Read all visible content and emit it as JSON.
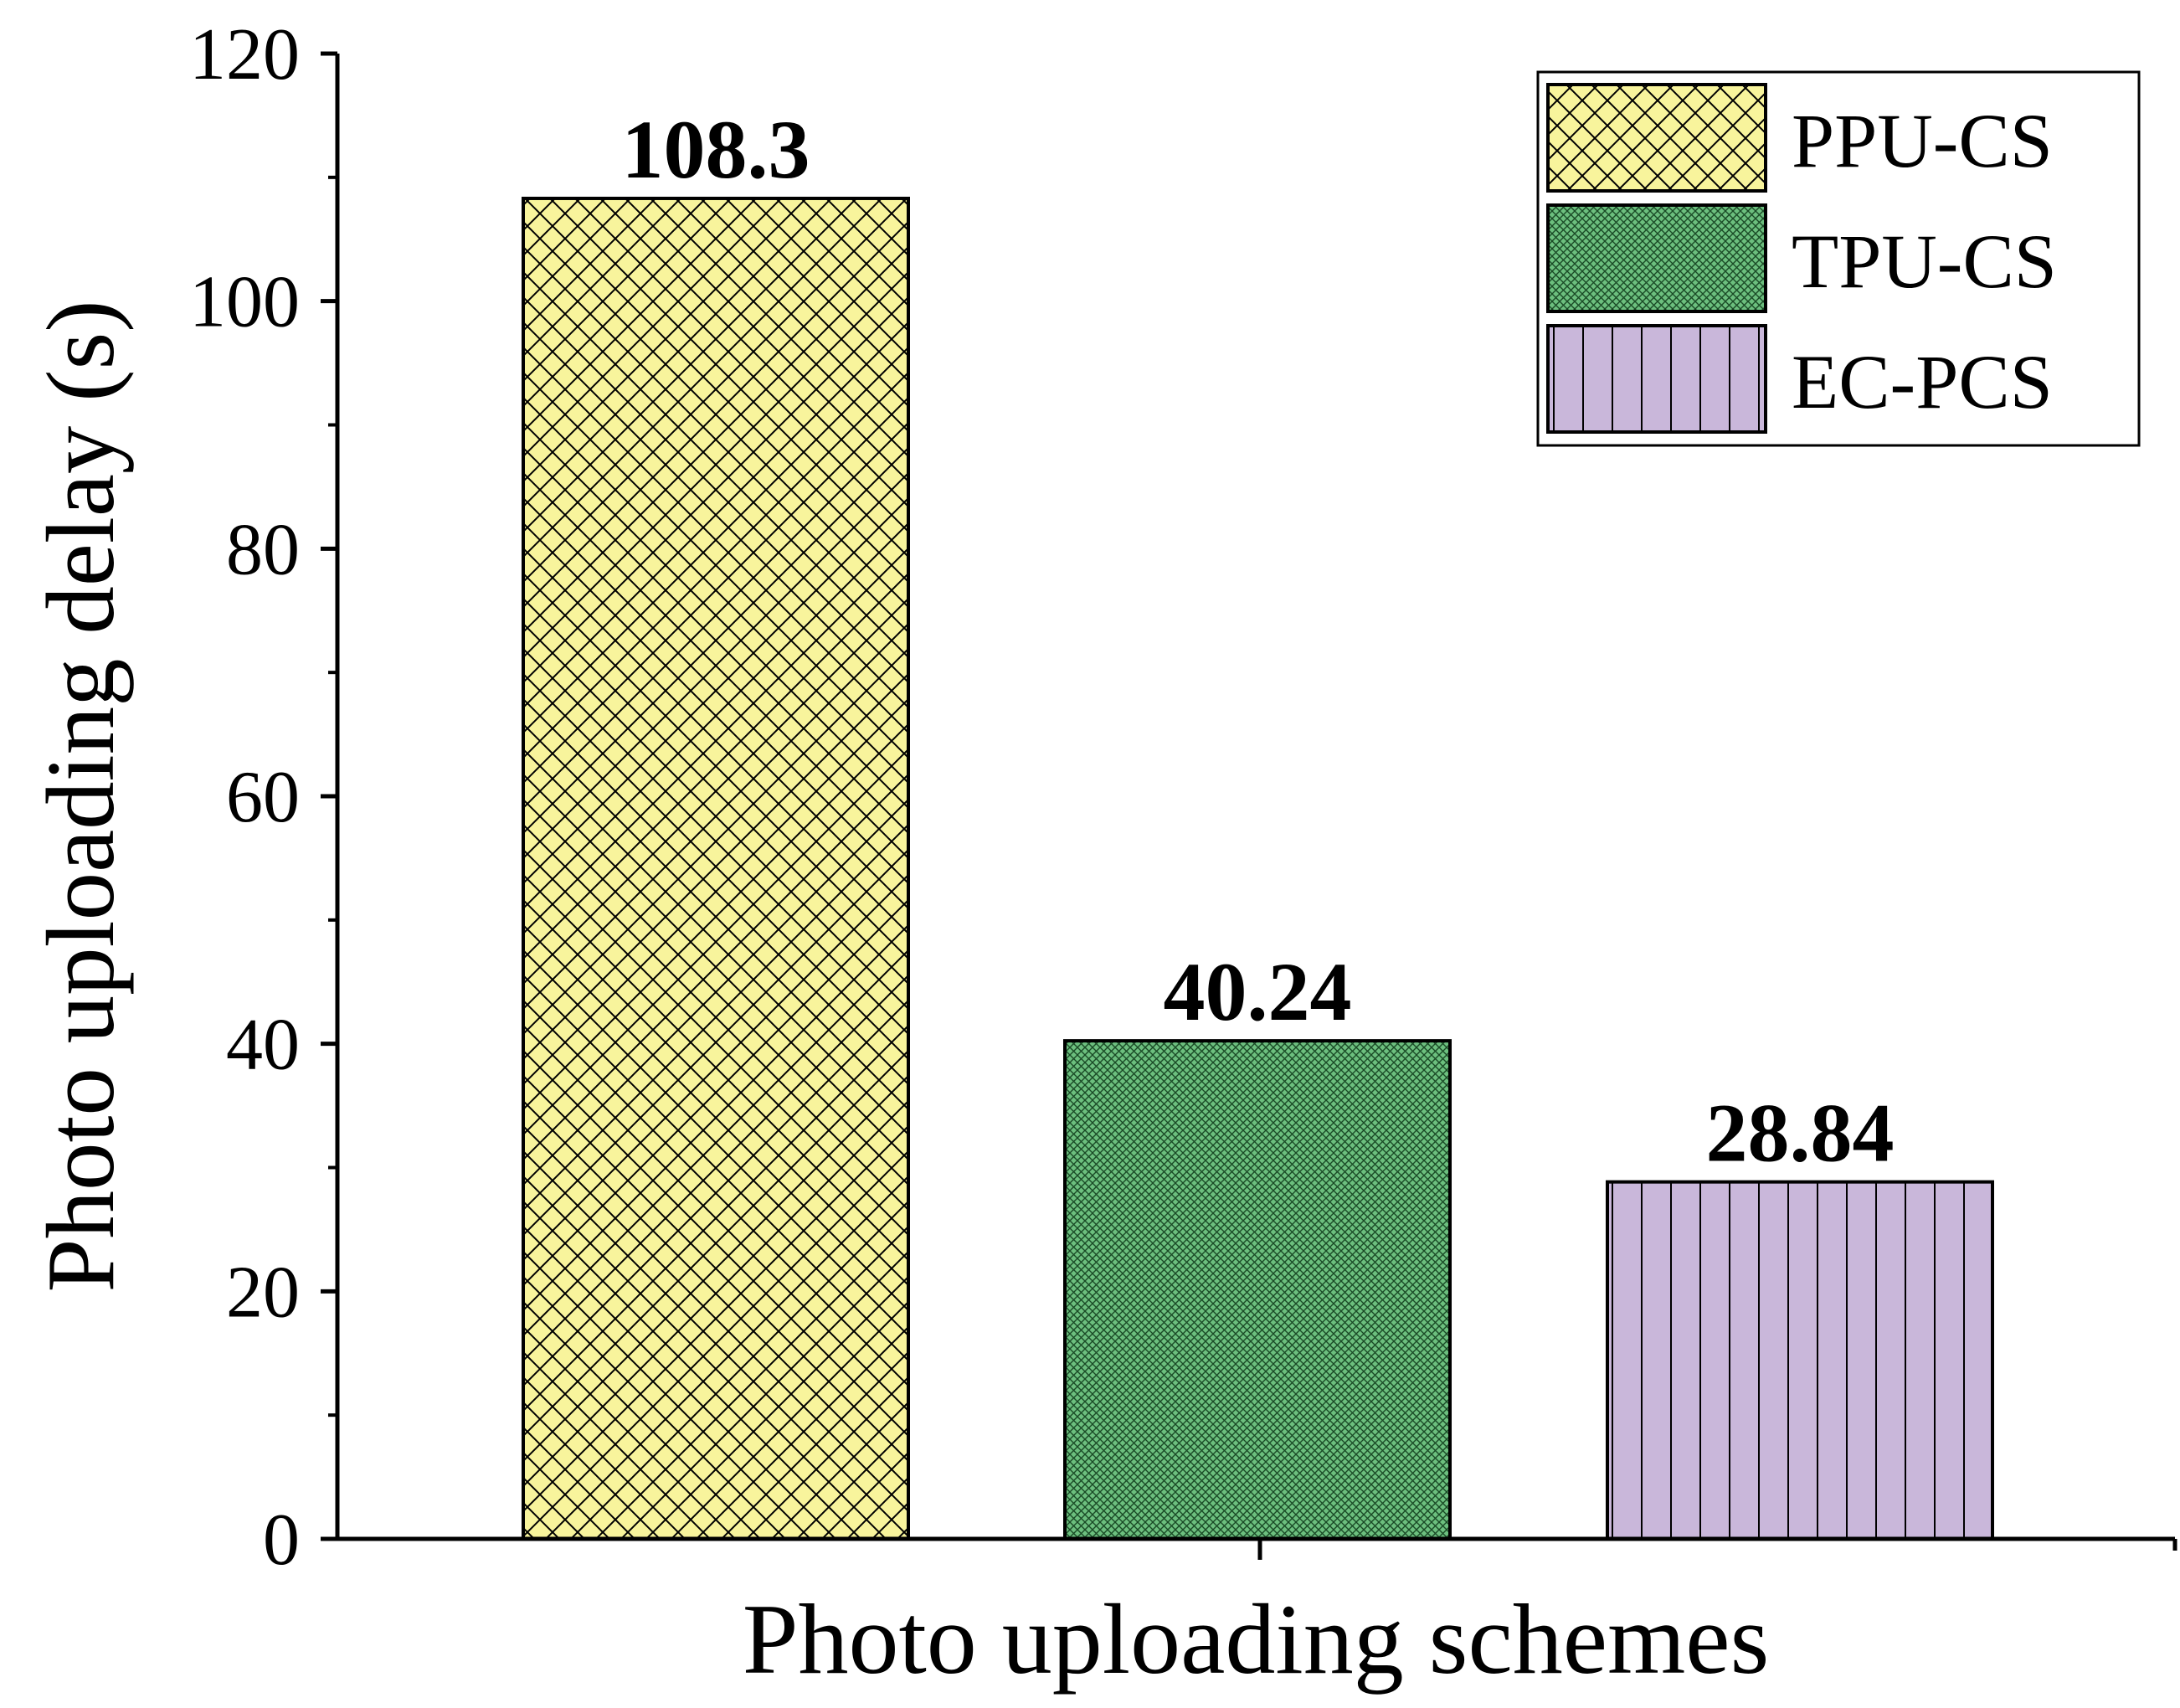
{
  "chart_data": {
    "type": "bar",
    "xlabel": "Photo uploading schemes",
    "ylabel": "Photo uploading delay (s)",
    "ylim": [
      0,
      120
    ],
    "yticks": [
      "0",
      "20",
      "40",
      "60",
      "80",
      "100",
      "120"
    ],
    "grid": false,
    "legend_position": "top-right",
    "series": [
      {
        "name": "PPU-CS",
        "value": 108.3,
        "label": "108.3",
        "color": "#f8f49c",
        "pattern": "crosshatch"
      },
      {
        "name": "TPU-CS",
        "value": 40.24,
        "label": "40.24",
        "color": "#6cbf7e",
        "pattern": "fine-mesh"
      },
      {
        "name": "EC-PCS",
        "value": 28.84,
        "label": "28.84",
        "color": "#c9b7da",
        "pattern": "vertical-lines"
      }
    ]
  }
}
